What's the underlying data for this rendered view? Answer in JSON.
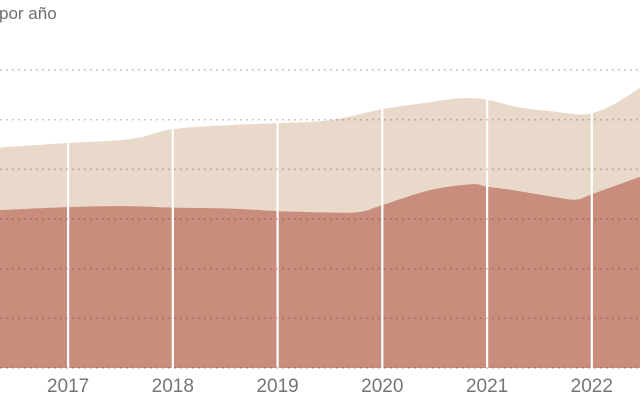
{
  "chart_data": {
    "type": "area",
    "stacked": true,
    "title": "por año",
    "xlabel": "",
    "ylabel": "",
    "legend": "none",
    "grid": "dotted-horizontal",
    "x_tick_labels": [
      "2017",
      "2018",
      "2019",
      "2020",
      "2021",
      "2022"
    ],
    "x_tick_years": [
      2017,
      2018,
      2019,
      2020,
      2021,
      2022
    ],
    "x_domain": [
      2016.35,
      2022.46
    ],
    "y_domain": [
      0,
      60
    ],
    "y_gridline_step": 10,
    "colors": {
      "lower_band": "#c98d7e",
      "upper_band": "#e9d9ca",
      "year_divider": "#ffffff",
      "gridline": "rgba(68,47,41,0.30)",
      "tick_label": "#757575",
      "title": "#6e6e6e"
    },
    "series": [
      {
        "name": "lower-band",
        "role": "stack-bottom",
        "points": [
          [
            2016.35,
            31.8
          ],
          [
            2017,
            32.4
          ],
          [
            2017.5,
            32.6
          ],
          [
            2018,
            32.3
          ],
          [
            2018.55,
            32.1
          ],
          [
            2019,
            31.6
          ],
          [
            2019.5,
            31.3
          ],
          [
            2019.78,
            31.4
          ],
          [
            2020,
            32.8
          ],
          [
            2020.45,
            35.8
          ],
          [
            2020.85,
            37.0
          ],
          [
            2021,
            36.5
          ],
          [
            2021.25,
            35.8
          ],
          [
            2021.65,
            34.4
          ],
          [
            2021.85,
            33.9
          ],
          [
            2022,
            35.0
          ],
          [
            2022.46,
            38.5
          ]
        ]
      },
      {
        "name": "upper-band-cumulative-total",
        "role": "stack-top-cumulative",
        "points": [
          [
            2016.35,
            44.4
          ],
          [
            2017,
            45.3
          ],
          [
            2017.6,
            46.1
          ],
          [
            2018,
            48.1
          ],
          [
            2018.55,
            48.9
          ],
          [
            2019,
            49.3
          ],
          [
            2019.5,
            49.9
          ],
          [
            2020,
            52.1
          ],
          [
            2020.45,
            53.5
          ],
          [
            2020.75,
            54.3
          ],
          [
            2021,
            54.0
          ],
          [
            2021.3,
            52.5
          ],
          [
            2021.65,
            51.6
          ],
          [
            2021.95,
            51.1
          ],
          [
            2022.2,
            53.0
          ],
          [
            2022.46,
            56.4
          ]
        ]
      }
    ]
  }
}
